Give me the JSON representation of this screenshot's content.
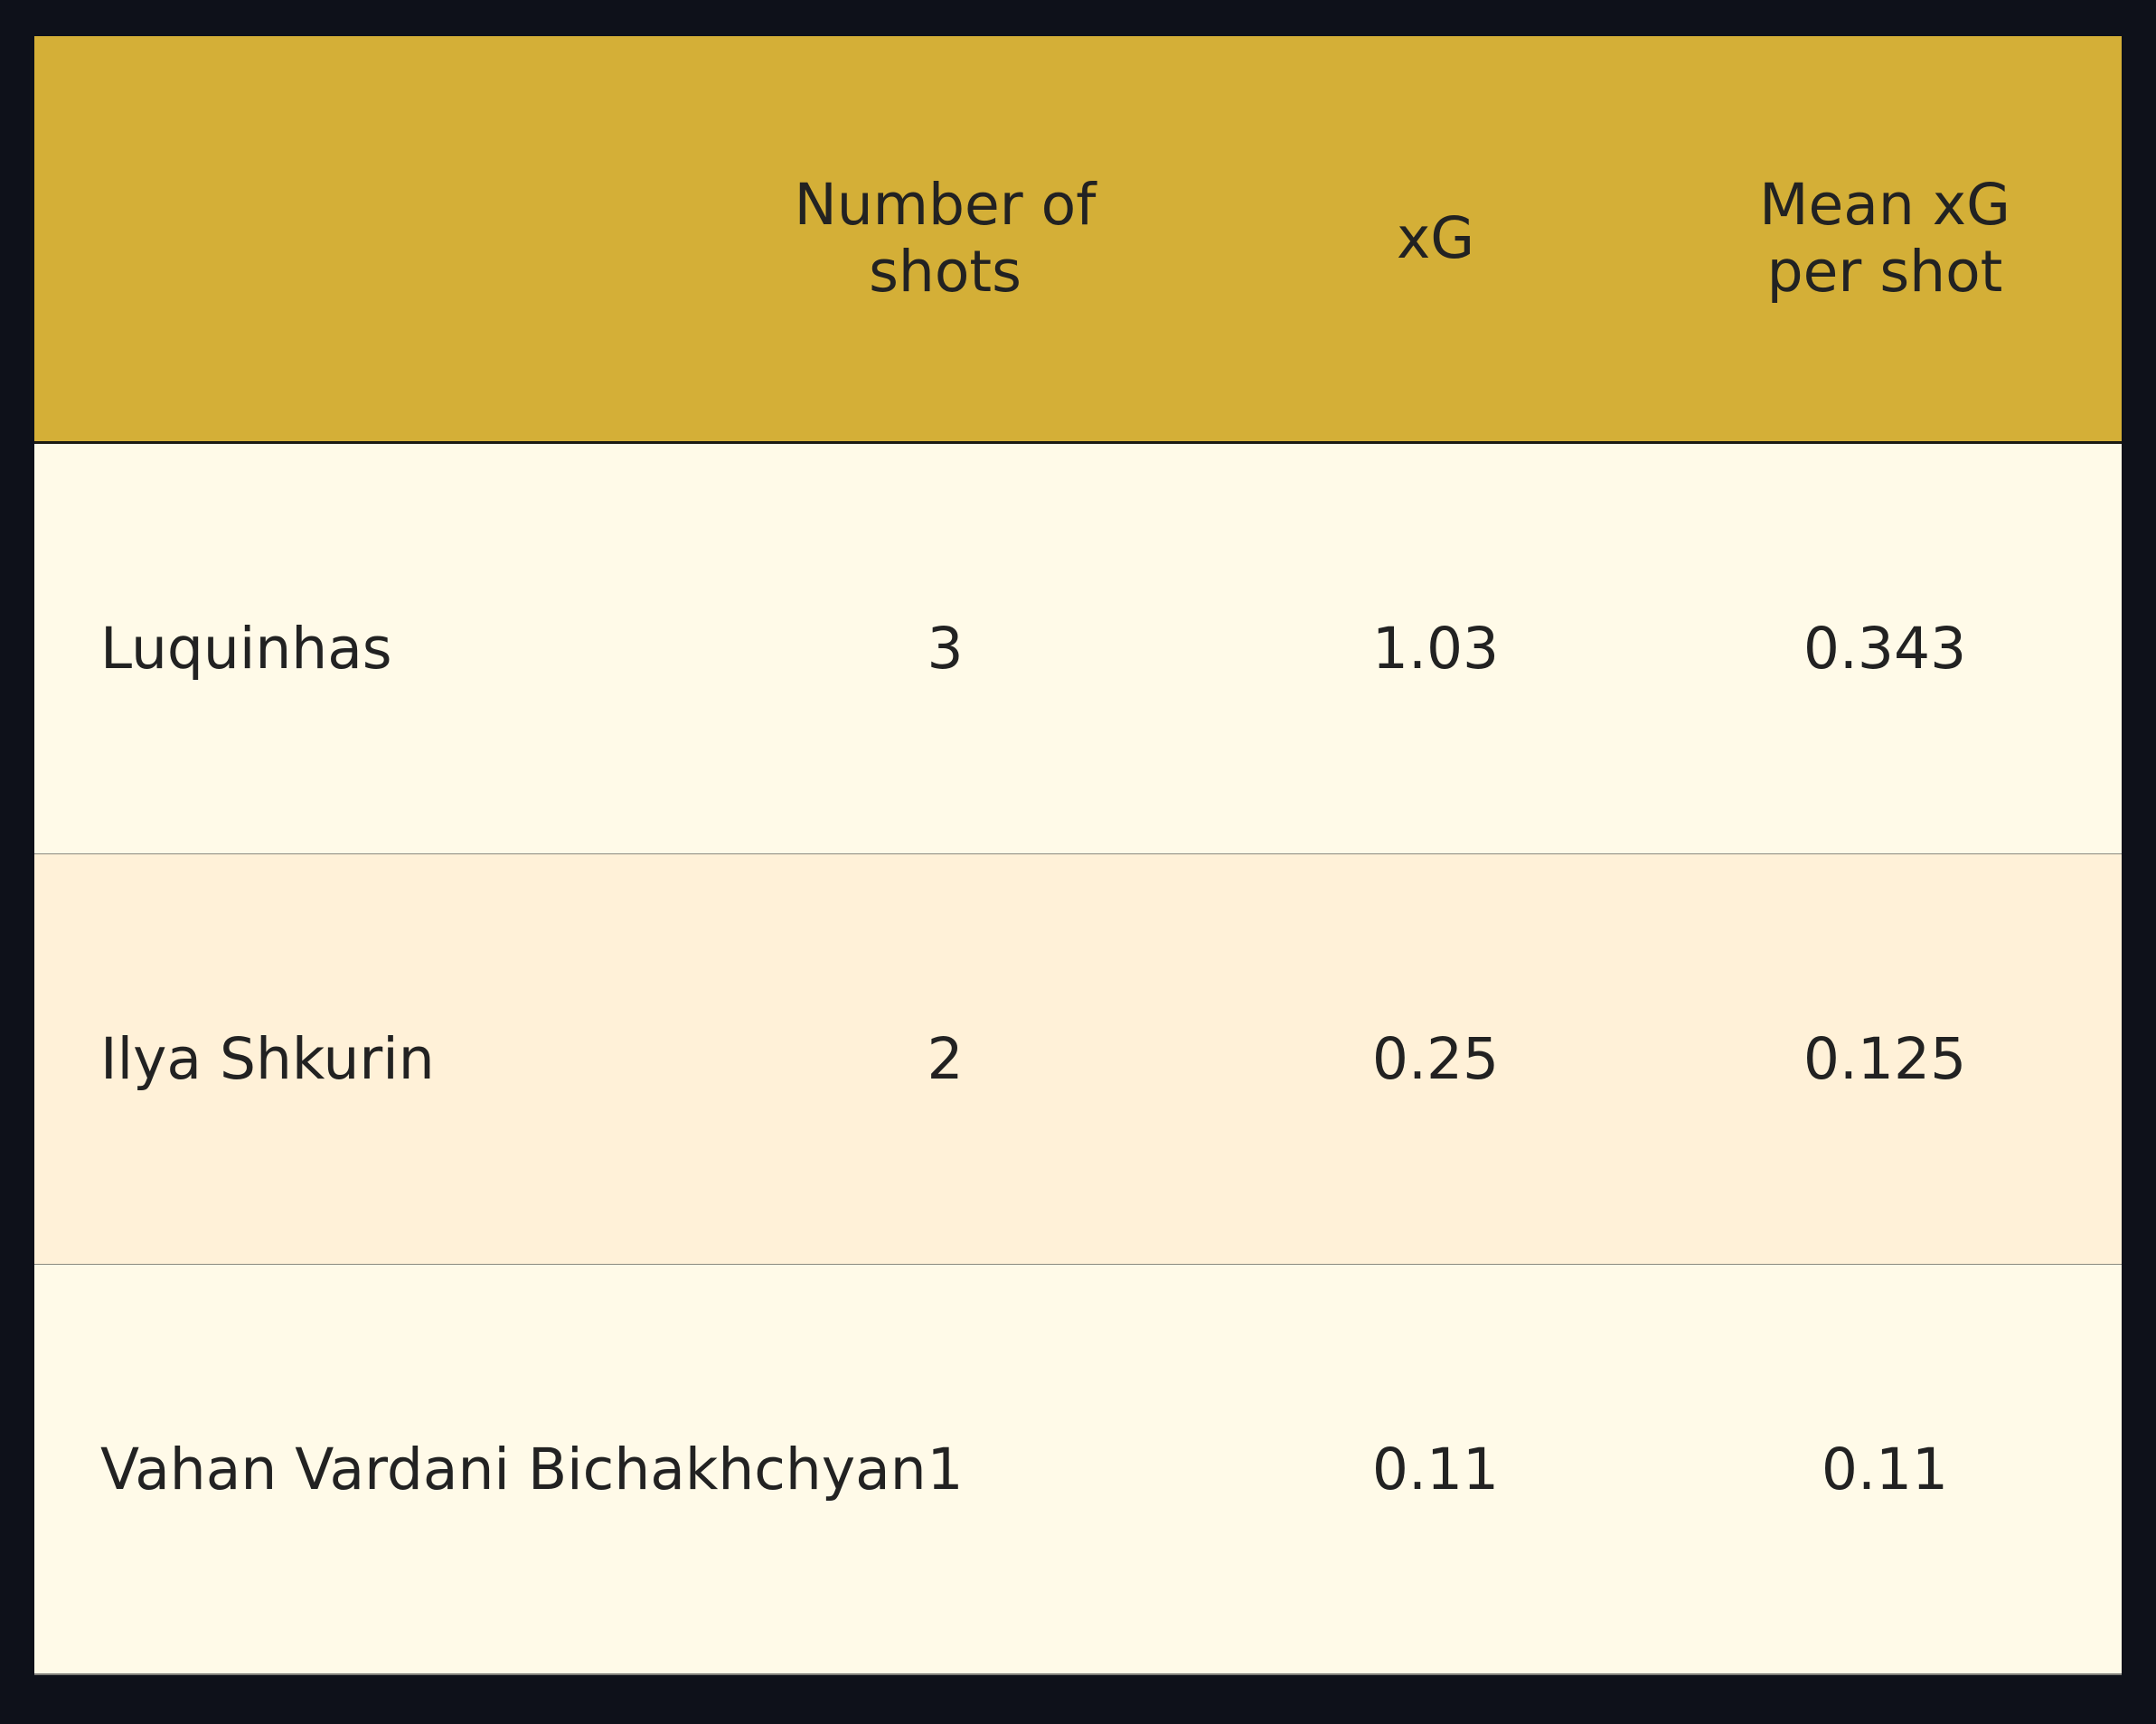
{
  "chart_data": {
    "type": "table",
    "columns": [
      "",
      "Number of\nshots",
      "xG",
      "Mean xG\nper shot"
    ],
    "rows": [
      {
        "player": "Luquinhas",
        "shots": "3",
        "xg": "1.03",
        "mean_xg": "0.343"
      },
      {
        "player": "Ilya Shkurin",
        "shots": "2",
        "xg": "0.25",
        "mean_xg": "0.125"
      },
      {
        "player": "Vahan Vardani Bichakhchyan",
        "shots": "1",
        "xg": "0.11",
        "mean_xg": "0.11"
      }
    ]
  },
  "colors": {
    "background": "#0e111a",
    "header": "#d4af37",
    "row_light": "#fffae8",
    "row_alt": "#fff1d8",
    "text": "#222222"
  }
}
